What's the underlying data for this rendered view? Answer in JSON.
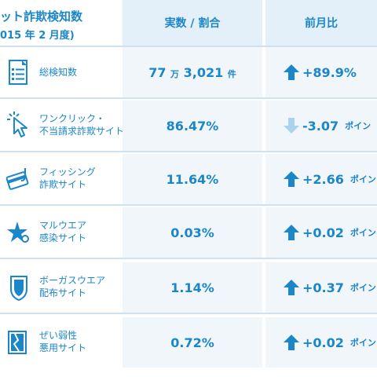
{
  "header": {
    "title_main": "ット詐欺検知数",
    "title_sub": "015 年 2 月度)",
    "col_value": "実数 / 割合",
    "col_change": "前月比"
  },
  "rows": [
    {
      "label_lines": [
        "総検知数"
      ],
      "value_big": "77",
      "value_unit1": "万",
      "value_mid": "3,021",
      "value_unit2": "件",
      "direction": "up",
      "change": "+89.9%",
      "change_unit": "",
      "icon": "document-list-icon"
    },
    {
      "label_lines": [
        "ワンクリック・",
        "不当請求詐欺サイト"
      ],
      "value": "86.47%",
      "direction": "down",
      "change": "-3.07",
      "change_unit": "ポイン",
      "icon": "cursor-click-icon"
    },
    {
      "label_lines": [
        "フィッシング",
        "詐欺サイト"
      ],
      "value": "11.64%",
      "direction": "up",
      "change": "+2.66",
      "change_unit": "ポイン",
      "icon": "credit-card-hook-icon"
    },
    {
      "label_lines": [
        "マルウエア",
        "感染サイト"
      ],
      "value": "0.03%",
      "direction": "up",
      "change": "+0.02",
      "change_unit": "ポイン",
      "icon": "malware-star-icon"
    },
    {
      "label_lines": [
        "ボーガスウエア",
        "配布サイト"
      ],
      "value": "1.14%",
      "direction": "up",
      "change": "+0.37",
      "change_unit": "ポイン",
      "icon": "shield-icon"
    },
    {
      "label_lines": [
        "ぜい弱性",
        "悪用サイト"
      ],
      "value": "0.72%",
      "direction": "up",
      "change": "+0.02",
      "change_unit": "ポイン",
      "icon": "broken-window-icon"
    }
  ],
  "colors": {
    "accent": "#1b86c8",
    "arrow_up": "#1b86c8",
    "arrow_down": "#a9d3ee",
    "cell_bg": "#f1f6fb",
    "header_bg": "#e3eff9"
  }
}
